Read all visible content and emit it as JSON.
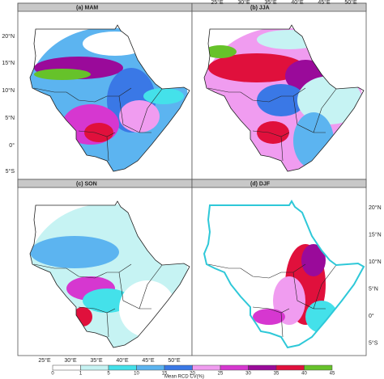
{
  "panels": [
    {
      "title": "(a) MAM"
    },
    {
      "title": "(b) JJA"
    },
    {
      "title": "(c) SON"
    },
    {
      "title": "(d) DJF"
    }
  ],
  "lat_labels": [
    "20°N",
    "15°N",
    "10°N",
    "5°N",
    "0°",
    "5°S"
  ],
  "lon_labels": [
    "25°E",
    "30°E",
    "35°E",
    "40°E",
    "45°E",
    "50°E"
  ],
  "colorbar": {
    "title": "Mean RCD CV(%)",
    "labels": [
      0,
      1,
      5,
      10,
      15,
      20,
      25,
      30,
      35,
      40,
      45
    ],
    "colors": [
      "#ffffff",
      "#c6f3f3",
      "#44e1ea",
      "#5cb4f0",
      "#3a78e6",
      "#f09cf0",
      "#d637d0",
      "#9a0a9a",
      "#e0103c",
      "#66c22a"
    ]
  }
}
